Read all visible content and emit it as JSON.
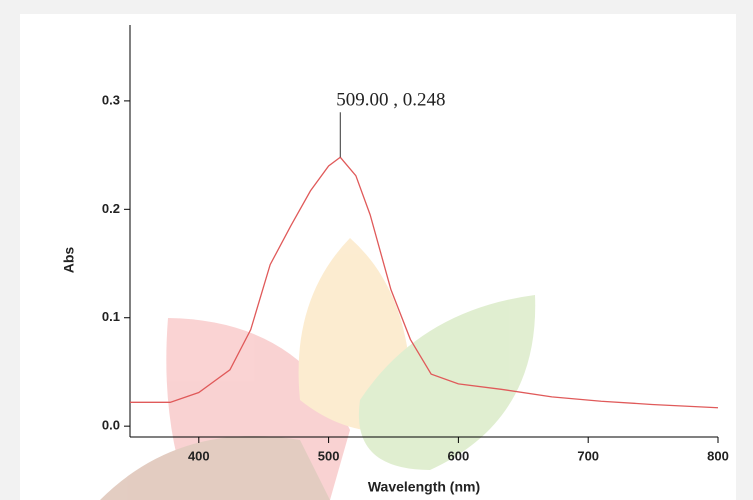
{
  "chart_data": {
    "type": "line",
    "xlabel": "Wavelength (nm)",
    "ylabel": "Abs",
    "annotation": {
      "text": "509.00 , 0.248",
      "x": 509,
      "y": 0.248
    },
    "x": [
      347,
      378,
      400,
      424,
      440,
      455,
      471,
      486,
      500,
      509,
      521,
      532,
      548,
      563,
      579,
      600,
      633,
      672,
      710,
      749,
      800
    ],
    "series": [
      {
        "name": "Abs",
        "color": "#e05a5a",
        "values": [
          0.022,
          0.022,
          0.031,
          0.052,
          0.089,
          0.149,
          0.185,
          0.217,
          0.24,
          0.248,
          0.231,
          0.195,
          0.126,
          0.08,
          0.048,
          0.039,
          0.034,
          0.027,
          0.023,
          0.02,
          0.017
        ]
      }
    ],
    "xlim": [
      347,
      800
    ],
    "ylim": [
      -0.01,
      0.37
    ],
    "xticks": [
      400,
      500,
      600,
      700,
      800
    ],
    "yticks": [
      {
        "value": 0,
        "label": "0.0"
      },
      0.1,
      0.2,
      0.3
    ]
  }
}
